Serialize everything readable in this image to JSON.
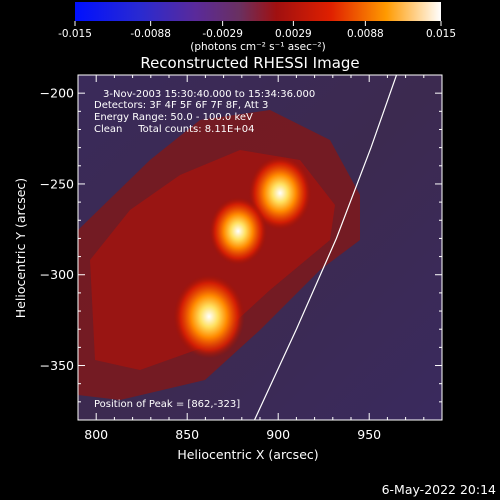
{
  "chart_data": {
    "type": "heatmap",
    "title": "Reconstructed RHESSI Image",
    "xlabel": "Heliocentric X (arcsec)",
    "ylabel": "Heliocentric Y (arcsec)",
    "xlim": [
      790,
      990
    ],
    "ylim": [
      -380,
      -190
    ],
    "xticks": [
      800,
      850,
      900,
      950
    ],
    "yticks": [
      -350,
      -300,
      -250,
      -200
    ],
    "colorbar": {
      "min": -0.015,
      "max": 0.015,
      "ticks": [
        -0.015,
        -0.0088,
        -0.0029,
        0.0029,
        0.0088,
        0.015
      ],
      "tick_labels": [
        "-0.015",
        "-0.0088",
        "-0.0029",
        "0.0029",
        "0.0088",
        "0.015"
      ],
      "units_label": "(photons cm⁻² s⁻¹ asec⁻²)"
    },
    "annotations": [
      "3-Nov-2003 15:30:40.000 to 15:34:36.000",
      "Detectors: 3F 4F 5F 6F 7F 8F, Att 3",
      "Energy Range: 50.0 - 100.0 keV",
      "Clean     Total counts: 8.11E+04"
    ],
    "peak_label": "Position of Peak = [862,-323]",
    "sources": [
      {
        "x": 862,
        "y": -323,
        "peak": 0.015
      },
      {
        "x": 901,
        "y": -255,
        "peak": 0.0125
      },
      {
        "x": 878,
        "y": -276,
        "peak": 0.011
      }
    ],
    "limb_curve": [
      [
        887,
        -380
      ],
      [
        910,
        -330
      ],
      [
        932,
        -280
      ],
      [
        951,
        -230
      ],
      [
        965,
        -190
      ]
    ]
  },
  "footer_date": "6-May-2022 20:14",
  "colors": {
    "background": "#000000",
    "text": "#ffffff",
    "colormap": [
      "#0000ff",
      "#3a2a8a",
      "#5a3a7a",
      "#8a1a1a",
      "#d01010",
      "#ff6a00",
      "#ffd000",
      "#ffffff"
    ]
  }
}
